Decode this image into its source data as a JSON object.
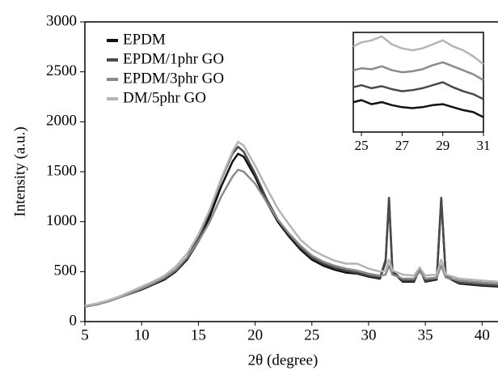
{
  "chart_data": [
    {
      "type": "line",
      "xlabel": "2θ (degree)",
      "ylabel": "Intensity (a.u.)",
      "x": [
        5,
        6,
        7,
        8,
        9,
        10,
        11,
        12,
        13,
        14,
        15,
        16,
        17,
        18,
        18.5,
        19,
        20,
        21,
        22,
        23,
        24,
        25,
        26,
        27,
        28,
        29,
        30,
        31,
        31.5,
        31.8,
        32.1,
        33,
        34,
        34.5,
        35,
        36,
        36.4,
        36.8,
        38,
        40,
        41.4
      ],
      "series": [
        {
          "name": "EPDM",
          "color": "#111111",
          "values": [
            150,
            170,
            200,
            240,
            280,
            320,
            370,
            420,
            500,
            620,
            800,
            1050,
            1350,
            1600,
            1680,
            1650,
            1450,
            1200,
            1000,
            850,
            720,
            620,
            560,
            520,
            490,
            480,
            450,
            430,
            600,
            1230,
            500,
            400,
            400,
            530,
            400,
            420,
            1230,
            450,
            380,
            360,
            350
          ]
        },
        {
          "name": "EPDM/1phr GO",
          "color": "#4a4a4a",
          "values": [
            150,
            175,
            205,
            245,
            290,
            330,
            380,
            430,
            510,
            640,
            830,
            1100,
            1420,
            1680,
            1750,
            1700,
            1480,
            1230,
            1020,
            870,
            740,
            640,
            580,
            540,
            510,
            490,
            460,
            440,
            620,
            1240,
            510,
            410,
            410,
            540,
            410,
            430,
            1240,
            460,
            390,
            370,
            360
          ]
        },
        {
          "name": "EPDM/3phr GO",
          "color": "#8a8a8a",
          "values": [
            150,
            170,
            200,
            240,
            285,
            330,
            380,
            440,
            520,
            640,
            800,
            1000,
            1250,
            1450,
            1520,
            1500,
            1380,
            1200,
            1020,
            880,
            760,
            660,
            600,
            560,
            530,
            510,
            480,
            460,
            470,
            560,
            470,
            430,
            430,
            500,
            430,
            440,
            560,
            440,
            410,
            390,
            380
          ]
        },
        {
          "name": "DM/5phr GO",
          "color": "#b5b5b5",
          "values": [
            160,
            180,
            210,
            250,
            300,
            350,
            400,
            460,
            550,
            680,
            870,
            1120,
            1430,
            1700,
            1800,
            1760,
            1560,
            1340,
            1130,
            970,
            820,
            720,
            660,
            610,
            580,
            580,
            530,
            500,
            510,
            620,
            510,
            470,
            460,
            540,
            460,
            470,
            620,
            470,
            430,
            410,
            400
          ]
        }
      ],
      "xlim": [
        5,
        41.4
      ],
      "ylim": [
        0,
        3000
      ],
      "xticks": [
        5,
        10,
        15,
        20,
        25,
        30,
        35,
        40
      ],
      "yticks": [
        0,
        500,
        1000,
        1500,
        2000,
        2500,
        3000
      ]
    },
    {
      "type": "line",
      "x": [
        24.6,
        25,
        25.5,
        26,
        26.5,
        27,
        27.5,
        28,
        28.5,
        29,
        29.5,
        30,
        30.5,
        31
      ],
      "series": [
        {
          "color": "#111111",
          "values": [
            30,
            32,
            28,
            30,
            27,
            25,
            24,
            25,
            27,
            28,
            25,
            22,
            20,
            15
          ]
        },
        {
          "color": "#4a4a4a",
          "values": [
            45,
            47,
            44,
            46,
            43,
            41,
            42,
            44,
            47,
            50,
            45,
            41,
            38,
            33
          ]
        },
        {
          "color": "#8a8a8a",
          "values": [
            62,
            64,
            63,
            66,
            62,
            60,
            61,
            63,
            67,
            70,
            66,
            62,
            58,
            52
          ]
        },
        {
          "color": "#b5b5b5",
          "values": [
            86,
            90,
            92,
            96,
            88,
            84,
            82,
            84,
            88,
            92,
            86,
            82,
            76,
            68
          ]
        }
      ],
      "xlim": [
        24.6,
        31
      ],
      "ylim": [
        0,
        100
      ],
      "xticks": [
        25,
        27,
        29,
        31
      ]
    }
  ]
}
